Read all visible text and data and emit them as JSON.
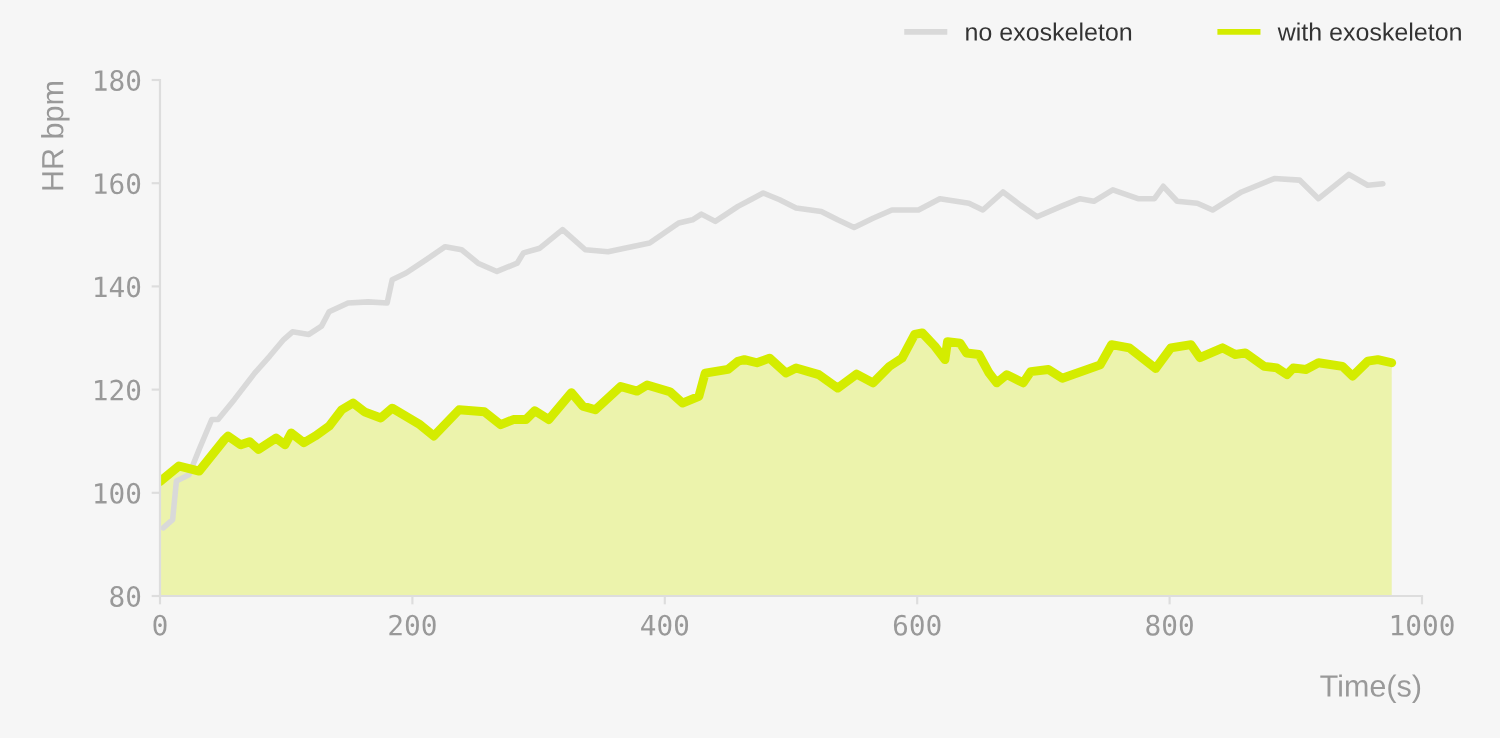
{
  "chart_data": {
    "type": "line",
    "xlabel": "Time(s)",
    "ylabel": "HR bpm",
    "xlim": [
      0,
      1000
    ],
    "ylim": [
      80,
      180
    ],
    "xticks": [
      0,
      200,
      400,
      600,
      800,
      1000
    ],
    "yticks": [
      80,
      100,
      120,
      140,
      160,
      180
    ],
    "grid": false,
    "legend": "top right",
    "marker": "none",
    "line_style": "solid",
    "series": [
      {
        "name": "no exoskeleton",
        "color": "#d9d9d9",
        "x": [
          2.6,
          10,
          13,
          23,
          31,
          41,
          46,
          59,
          75,
          87,
          98,
          105,
          118,
          128,
          134,
          149,
          165,
          180,
          184,
          195,
          211,
          226,
          239,
          252,
          267,
          283,
          288,
          301,
          319,
          337,
          355,
          370,
          388,
          411,
          422,
          429,
          440,
          458,
          468,
          478,
          491,
          504,
          524,
          537,
          550,
          565,
          580,
          601,
          618,
          641,
          652,
          668,
          682,
          695,
          714,
          729,
          740,
          755,
          775,
          788,
          795,
          806,
          822,
          834,
          857,
          883,
          903,
          918,
          942,
          957,
          969
        ],
        "values": [
          93.2,
          94.8,
          102.3,
          103.5,
          108.4,
          114.2,
          114.2,
          118.1,
          123.2,
          126.5,
          129.7,
          131.2,
          130.7,
          132.3,
          135.1,
          136.8,
          137.0,
          136.8,
          141.3,
          142.6,
          145.2,
          147.7,
          147.1,
          144.5,
          142.9,
          144.5,
          146.5,
          147.4,
          151.0,
          147.1,
          146.7,
          147.5,
          148.4,
          152.3,
          152.9,
          154.0,
          152.6,
          155.5,
          156.8,
          158.1,
          156.8,
          155.2,
          154.5,
          152.9,
          151.4,
          153.2,
          154.8,
          154.8,
          157.0,
          156.1,
          154.8,
          158.3,
          155.7,
          153.5,
          155.5,
          157.0,
          156.5,
          158.7,
          157.0,
          157.0,
          159.4,
          156.5,
          156.1,
          154.8,
          158.3,
          160.9,
          160.6,
          157.0,
          161.7,
          159.6,
          159.9
        ]
      },
      {
        "name": "with exoskeleton",
        "color": "#d4ec00",
        "type": "area",
        "x": [
          0,
          15,
          31,
          51,
          54,
          64,
          71,
          78,
          92,
          99,
          104,
          114,
          123,
          134,
          144,
          153,
          162,
          175,
          184,
          206,
          217,
          237,
          257,
          270,
          280,
          290,
          297,
          308,
          326,
          335,
          345,
          365,
          378,
          386,
          404,
          414,
          427,
          432,
          450,
          458,
          463,
          473,
          483,
          496,
          504,
          522,
          537,
          552,
          565,
          578,
          588,
          598,
          604,
          614,
          622,
          624,
          634,
          639,
          649,
          657,
          663,
          671,
          684,
          690,
          704,
          715,
          745,
          754,
          768,
          789,
          801,
          817,
          824,
          842,
          852,
          860,
          875,
          885,
          893,
          898,
          908,
          918,
          937,
          945,
          957,
          965,
          976
        ],
        "values": [
          102.2,
          105.2,
          104.2,
          110.3,
          111.0,
          109.3,
          109.9,
          108.4,
          110.6,
          109.3,
          111.6,
          109.7,
          111.0,
          112.9,
          116.1,
          117.4,
          115.7,
          114.5,
          116.4,
          113.2,
          111.0,
          116.1,
          115.7,
          113.2,
          114.2,
          114.2,
          115.9,
          114.2,
          119.4,
          116.8,
          116.1,
          120.6,
          119.7,
          120.9,
          119.6,
          117.4,
          118.7,
          123.2,
          123.9,
          125.5,
          125.8,
          125.2,
          126.1,
          123.2,
          124.2,
          122.9,
          120.3,
          123.0,
          121.3,
          124.5,
          126.1,
          130.7,
          131.0,
          128.4,
          125.8,
          129.3,
          129.0,
          127.1,
          126.8,
          123.2,
          121.3,
          122.9,
          121.3,
          123.5,
          123.9,
          122.2,
          124.8,
          128.7,
          128.1,
          124.1,
          128.1,
          128.7,
          126.2,
          128.1,
          126.8,
          127.1,
          124.5,
          124.2,
          122.9,
          124.2,
          123.9,
          125.2,
          124.5,
          122.6,
          125.5,
          125.8,
          125.2
        ]
      }
    ]
  }
}
